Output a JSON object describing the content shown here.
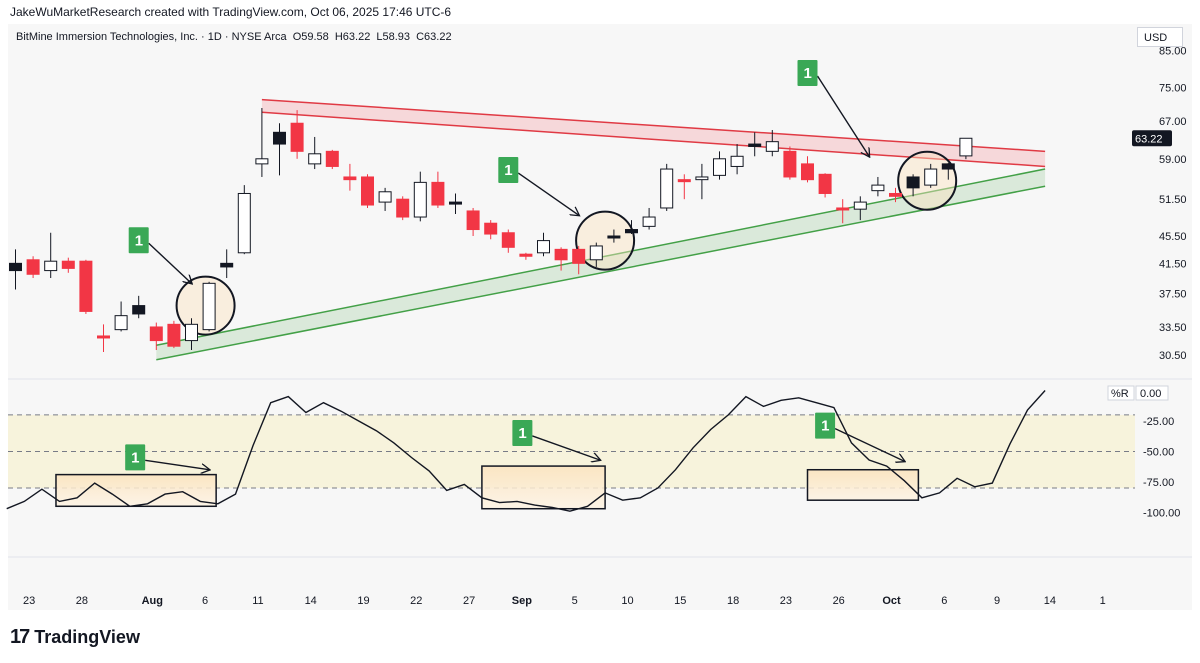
{
  "header": {
    "credit": "JakeWuMarketResearch created with TradingView.com, Oct 06, 2025 17:46 UTC-6",
    "symbol": "BitMine Immersion Technologies, Inc. · 1D · NYSE Arca",
    "open": "O59.58",
    "high": "H63.22",
    "low": "L58.93",
    "close": "C63.22",
    "currency": "USD"
  },
  "footer": {
    "brand": "TradingView",
    "mark": "17"
  },
  "colors": {
    "up": "#ffffff",
    "down": "#f23645",
    "wick": "#131722",
    "resistance": "#e03a44",
    "support": "#43a047",
    "badge": "#3aa856"
  },
  "chart_data": [
    {
      "type": "candlestick",
      "title": "BitMine Immersion Technologies, Inc. · 1D · NYSE Arca",
      "ylabel": "USD",
      "ylim": [
        28.5,
        88
      ],
      "y_scale": "log",
      "y_ticks": [
        "85.00",
        "75.00",
        "67.00",
        "59.00",
        "51.50",
        "45.50",
        "41.50",
        "37.50",
        "33.50",
        "30.50"
      ],
      "x_ticks": [
        "23",
        "28",
        "Aug",
        "6",
        "11",
        "14",
        "19",
        "22",
        "27",
        "Sep",
        "5",
        "10",
        "15",
        "18",
        "23",
        "26",
        "Oct",
        "6",
        "9",
        "14",
        "1"
      ],
      "last_price": "63.22",
      "bar_slots": 59,
      "candles": [
        {
          "i": 0,
          "o": 41.5,
          "h": 43.5,
          "l": 38.0,
          "c": 40.5,
          "dir": "down",
          "fill": "black"
        },
        {
          "i": 1,
          "o": 42.0,
          "h": 42.5,
          "l": 39.5,
          "c": 40.0,
          "dir": "down",
          "fill": "red"
        },
        {
          "i": 2,
          "o": 40.5,
          "h": 46.0,
          "l": 39.5,
          "c": 41.8,
          "dir": "up",
          "fill": "hollow"
        },
        {
          "i": 3,
          "o": 41.8,
          "h": 42.3,
          "l": 40.2,
          "c": 40.8,
          "dir": "down",
          "fill": "red"
        },
        {
          "i": 4,
          "o": 41.8,
          "h": 42.0,
          "l": 35.0,
          "c": 35.3,
          "dir": "down",
          "fill": "red"
        },
        {
          "i": 5,
          "o": 32.5,
          "h": 33.8,
          "l": 30.8,
          "c": 32.4,
          "dir": "down",
          "fill": "red"
        },
        {
          "i": 6,
          "o": 33.2,
          "h": 36.5,
          "l": 33.0,
          "c": 34.8,
          "dir": "up",
          "fill": "hollow"
        },
        {
          "i": 7,
          "o": 36.0,
          "h": 37.2,
          "l": 34.5,
          "c": 35.0,
          "dir": "down",
          "fill": "black"
        },
        {
          "i": 8,
          "o": 33.5,
          "h": 34.0,
          "l": 31.0,
          "c": 32.0,
          "dir": "down",
          "fill": "red"
        },
        {
          "i": 9,
          "o": 33.8,
          "h": 34.2,
          "l": 31.2,
          "c": 31.4,
          "dir": "down",
          "fill": "red"
        },
        {
          "i": 10,
          "o": 32.0,
          "h": 34.5,
          "l": 31.0,
          "c": 33.8,
          "dir": "up",
          "fill": "hollow"
        },
        {
          "i": 11,
          "o": 33.2,
          "h": 39.0,
          "l": 33.0,
          "c": 38.8,
          "dir": "up",
          "fill": "hollow"
        },
        {
          "i": 12,
          "o": 41.5,
          "h": 43.5,
          "l": 39.5,
          "c": 41.0,
          "dir": "down",
          "fill": "black"
        },
        {
          "i": 13,
          "o": 43.0,
          "h": 54.0,
          "l": 42.8,
          "c": 52.5,
          "dir": "up",
          "fill": "hollow"
        },
        {
          "i": 14,
          "o": 58.0,
          "h": 70.0,
          "l": 55.5,
          "c": 59.0,
          "dir": "up",
          "fill": "hollow"
        },
        {
          "i": 15,
          "o": 64.5,
          "h": 66.5,
          "l": 55.8,
          "c": 62.0,
          "dir": "down",
          "fill": "black"
        },
        {
          "i": 16,
          "o": 66.5,
          "h": 69.5,
          "l": 59.0,
          "c": 60.5,
          "dir": "down",
          "fill": "red"
        },
        {
          "i": 17,
          "o": 58.0,
          "h": 63.5,
          "l": 57.0,
          "c": 60.0,
          "dir": "up",
          "fill": "hollow"
        },
        {
          "i": 18,
          "o": 60.5,
          "h": 60.8,
          "l": 57.0,
          "c": 57.5,
          "dir": "down",
          "fill": "red"
        },
        {
          "i": 19,
          "o": 55.5,
          "h": 58.0,
          "l": 53.0,
          "c": 55.0,
          "dir": "down",
          "fill": "red"
        },
        {
          "i": 20,
          "o": 55.5,
          "h": 56.0,
          "l": 50.0,
          "c": 50.5,
          "dir": "down",
          "fill": "red"
        },
        {
          "i": 21,
          "o": 51.0,
          "h": 53.5,
          "l": 49.5,
          "c": 52.8,
          "dir": "up",
          "fill": "hollow"
        },
        {
          "i": 22,
          "o": 51.5,
          "h": 52.0,
          "l": 48.0,
          "c": 48.5,
          "dir": "down",
          "fill": "red"
        },
        {
          "i": 23,
          "o": 48.5,
          "h": 56.5,
          "l": 47.8,
          "c": 54.5,
          "dir": "up",
          "fill": "hollow"
        },
        {
          "i": 24,
          "o": 54.5,
          "h": 56.5,
          "l": 50.0,
          "c": 50.5,
          "dir": "down",
          "fill": "red"
        },
        {
          "i": 25,
          "o": 51.0,
          "h": 52.5,
          "l": 49.0,
          "c": 51.0,
          "dir": "down",
          "fill": "black"
        },
        {
          "i": 26,
          "o": 49.5,
          "h": 50.0,
          "l": 45.5,
          "c": 46.5,
          "dir": "down",
          "fill": "red"
        },
        {
          "i": 27,
          "o": 47.5,
          "h": 48.0,
          "l": 45.0,
          "c": 45.8,
          "dir": "down",
          "fill": "red"
        },
        {
          "i": 28,
          "o": 46.0,
          "h": 46.5,
          "l": 43.0,
          "c": 43.8,
          "dir": "down",
          "fill": "red"
        },
        {
          "i": 29,
          "o": 42.8,
          "h": 43.0,
          "l": 42.0,
          "c": 42.5,
          "dir": "down",
          "fill": "red"
        },
        {
          "i": 30,
          "o": 43.0,
          "h": 46.0,
          "l": 42.5,
          "c": 44.8,
          "dir": "up",
          "fill": "hollow"
        },
        {
          "i": 31,
          "o": 43.5,
          "h": 43.8,
          "l": 40.5,
          "c": 42.0,
          "dir": "down",
          "fill": "red"
        },
        {
          "i": 32,
          "o": 43.5,
          "h": 44.0,
          "l": 40.0,
          "c": 41.5,
          "dir": "down",
          "fill": "red"
        },
        {
          "i": 33,
          "o": 42.0,
          "h": 44.5,
          "l": 41.0,
          "c": 44.0,
          "dir": "up",
          "fill": "hollow"
        },
        {
          "i": 34,
          "o": 45.5,
          "h": 46.5,
          "l": 44.5,
          "c": 45.3,
          "dir": "down",
          "fill": "black"
        },
        {
          "i": 35,
          "o": 46.5,
          "h": 48.0,
          "l": 45.8,
          "c": 46.0,
          "dir": "down",
          "fill": "black"
        },
        {
          "i": 36,
          "o": 47.0,
          "h": 50.0,
          "l": 46.5,
          "c": 48.5,
          "dir": "up",
          "fill": "hollow"
        },
        {
          "i": 37,
          "o": 50.0,
          "h": 58.0,
          "l": 49.5,
          "c": 57.0,
          "dir": "up",
          "fill": "hollow"
        },
        {
          "i": 38,
          "o": 55.0,
          "h": 56.0,
          "l": 51.5,
          "c": 55.0,
          "dir": "down",
          "fill": "red"
        },
        {
          "i": 39,
          "o": 55.0,
          "h": 58.0,
          "l": 51.5,
          "c": 55.5,
          "dir": "up",
          "fill": "hollow"
        },
        {
          "i": 40,
          "o": 55.8,
          "h": 60.5,
          "l": 55.0,
          "c": 59.0,
          "dir": "up",
          "fill": "hollow"
        },
        {
          "i": 41,
          "o": 57.5,
          "h": 62.0,
          "l": 56.0,
          "c": 59.5,
          "dir": "up",
          "fill": "hollow"
        },
        {
          "i": 42,
          "o": 61.5,
          "h": 64.5,
          "l": 59.5,
          "c": 62.0,
          "dir": "down",
          "fill": "black"
        },
        {
          "i": 43,
          "o": 60.5,
          "h": 65.0,
          "l": 59.5,
          "c": 62.5,
          "dir": "up",
          "fill": "hollow"
        },
        {
          "i": 44,
          "o": 60.5,
          "h": 61.5,
          "l": 55.0,
          "c": 55.5,
          "dir": "down",
          "fill": "red"
        },
        {
          "i": 45,
          "o": 58.0,
          "h": 59.5,
          "l": 54.5,
          "c": 55.0,
          "dir": "down",
          "fill": "red"
        },
        {
          "i": 46,
          "o": 56.0,
          "h": 56.2,
          "l": 51.8,
          "c": 52.5,
          "dir": "down",
          "fill": "red"
        },
        {
          "i": 47,
          "o": 49.8,
          "h": 51.5,
          "l": 47.5,
          "c": 50.0,
          "dir": "down",
          "fill": "red"
        },
        {
          "i": 48,
          "o": 49.8,
          "h": 52.0,
          "l": 48.0,
          "c": 51.0,
          "dir": "up",
          "fill": "hollow"
        },
        {
          "i": 49,
          "o": 53.0,
          "h": 55.5,
          "l": 52.0,
          "c": 54.0,
          "dir": "up",
          "fill": "hollow"
        },
        {
          "i": 50,
          "o": 52.5,
          "h": 53.5,
          "l": 51.0,
          "c": 52.0,
          "dir": "down",
          "fill": "red"
        },
        {
          "i": 51,
          "o": 55.5,
          "h": 56.0,
          "l": 52.0,
          "c": 53.5,
          "dir": "down",
          "fill": "black"
        },
        {
          "i": 52,
          "o": 54.0,
          "h": 58.0,
          "l": 53.5,
          "c": 57.0,
          "dir": "up",
          "fill": "hollow"
        },
        {
          "i": 53,
          "o": 58.0,
          "h": 58.2,
          "l": 55.0,
          "c": 57.0,
          "dir": "down",
          "fill": "black"
        },
        {
          "i": 54,
          "o": 59.58,
          "h": 63.22,
          "l": 58.93,
          "c": 63.22,
          "dir": "up",
          "fill": "hollow"
        }
      ],
      "trendlines": [
        {
          "name": "resistance-upper",
          "x": [
            14.0,
            58.5
          ],
          "y": [
            72.0,
            60.5
          ]
        },
        {
          "name": "resistance-lower",
          "x": [
            14.0,
            58.5
          ],
          "y": [
            69.0,
            57.5
          ]
        },
        {
          "name": "support-lower",
          "x": [
            8.0,
            58.5
          ],
          "y": [
            30.0,
            53.8
          ]
        },
        {
          "name": "support-upper",
          "x": [
            8.0,
            58.5
          ],
          "y": [
            31.5,
            57.0
          ]
        }
      ],
      "circles": [
        {
          "x": 10.8,
          "y": 36.0
        },
        {
          "x": 33.5,
          "y": 44.8
        },
        {
          "x": 51.8,
          "y": 54.8
        }
      ],
      "signals": [
        {
          "label": "1",
          "bx": 7.0,
          "by": 45.0,
          "tx": 10.0,
          "ty": 38.8
        },
        {
          "label": "1",
          "bx": 28.0,
          "by": 57.0,
          "tx": 32.0,
          "ty": 48.8
        },
        {
          "label": "1",
          "bx": 45.0,
          "by": 79.0,
          "tx": 48.5,
          "ty": 59.5
        }
      ]
    },
    {
      "type": "line",
      "title": "%R",
      "indicator_name": "%R",
      "indicator_value": "0.00",
      "ylim": [
        -112,
        7
      ],
      "y_ticks": [
        "-25.00",
        "-50.00",
        "-75.00",
        "-100.00"
      ],
      "band": [
        -20,
        -80
      ],
      "values": [
        -97,
        -91,
        -81,
        -91,
        -88,
        -76,
        -85,
        -95,
        -93,
        -85,
        -83,
        -91,
        -93,
        -85,
        -45,
        -10,
        -5,
        -18,
        -10,
        -17,
        -25,
        -33,
        -43,
        -55,
        -66,
        -82,
        -77,
        -88,
        -92,
        -91,
        -94,
        -96,
        -99,
        -95,
        -84,
        -90,
        -88,
        -80,
        -65,
        -47,
        -32,
        -20,
        -5,
        -13,
        -8,
        -6,
        -10,
        -14,
        -43,
        -57,
        -62,
        -74,
        -88,
        -84,
        -72,
        -79,
        -76,
        -44,
        -16,
        0
      ],
      "boxes": [
        {
          "x0": 2.3,
          "x1": 11.4,
          "y0": -69,
          "y1": -95
        },
        {
          "x0": 26.5,
          "x1": 33.5,
          "y0": -62,
          "y1": -97
        },
        {
          "x0": 45.0,
          "x1": 51.3,
          "y0": -65,
          "y1": -90
        }
      ],
      "signals": [
        {
          "label": "1",
          "bx": 6.8,
          "by": -54,
          "tx": 11.0,
          "ty": -65
        },
        {
          "label": "1",
          "bx": 28.8,
          "by": -34,
          "tx": 33.2,
          "ty": -57
        },
        {
          "label": "1",
          "bx": 46.0,
          "by": -28,
          "tx": 50.5,
          "ty": -58
        }
      ]
    }
  ]
}
